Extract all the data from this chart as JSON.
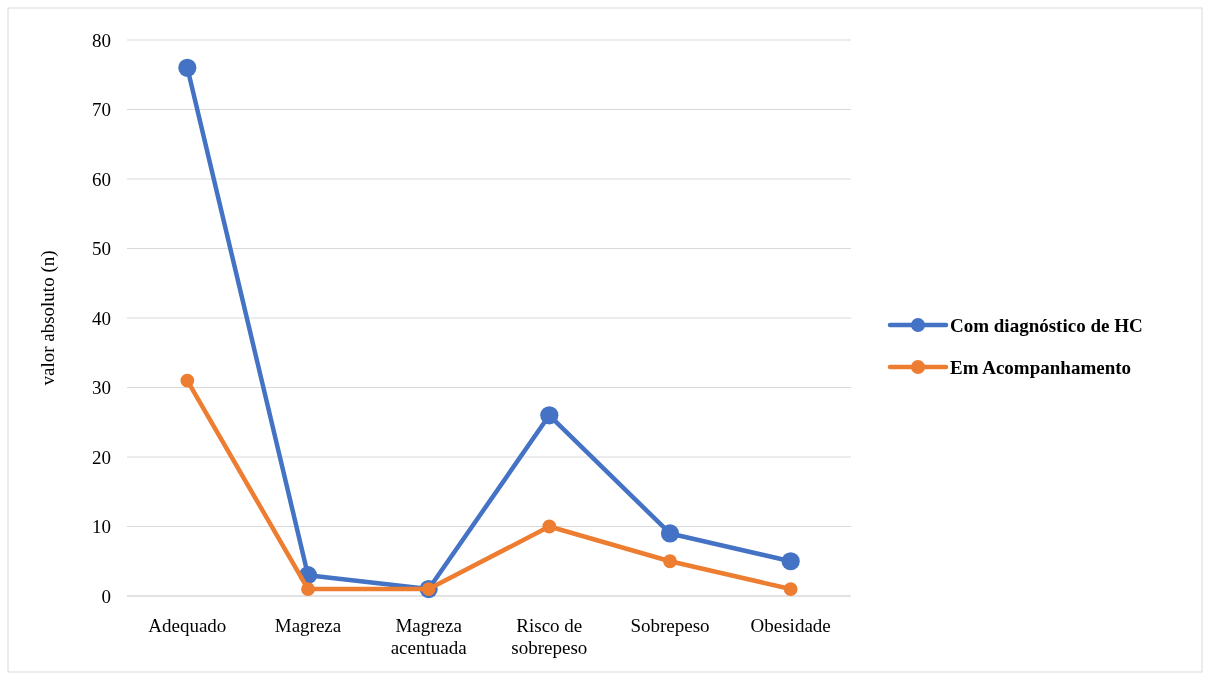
{
  "chart_data": {
    "type": "line",
    "ylabel": "valor absoluto (n)",
    "categories": [
      "Adequado",
      "Magreza",
      "Magreza acentuada",
      "Risco de sobrepeso",
      "Sobrepeso",
      "Obesidade"
    ],
    "series": [
      {
        "name": "Com diagnóstico de HC",
        "color": "#4472c4",
        "values": [
          76,
          3,
          1,
          26,
          9,
          5
        ]
      },
      {
        "name": "Em Acompanhamento",
        "color": "#ed7d31",
        "values": [
          31,
          1,
          1,
          10,
          5,
          1
        ]
      }
    ],
    "ylim": [
      0,
      80
    ],
    "yticks": [
      0,
      10,
      20,
      30,
      40,
      50,
      60,
      70,
      80
    ],
    "grid": "y",
    "legend": "right",
    "marker": "circle",
    "line_style": "solid"
  }
}
